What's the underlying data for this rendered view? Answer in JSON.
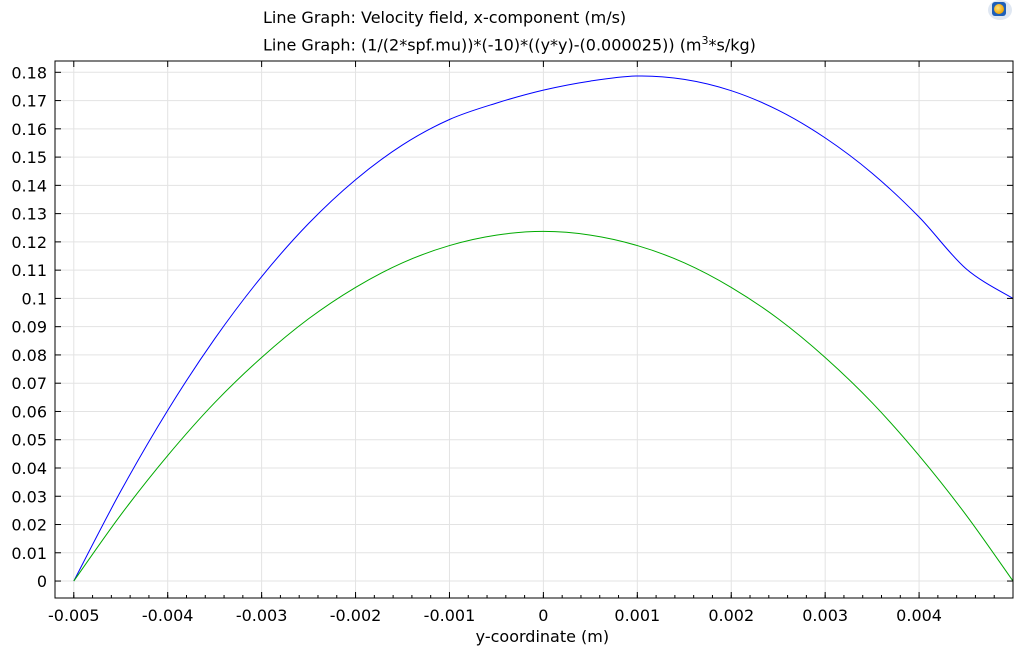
{
  "titles": {
    "line1": "Line Graph: Velocity field, x-component (m/s)",
    "line2_main": "Line Graph: (1/(2*spf.mu))*(-10)*((y*y)-(0.000025)) (m",
    "line2_sup": "3",
    "line2_tail": "*s/kg)"
  },
  "logo": {
    "icon": "comsol-logo-icon"
  },
  "chart_data": {
    "type": "line",
    "title": "",
    "xlabel": "y-coordinate (m)",
    "ylabel": "",
    "xlim": [
      -0.0052,
      0.005
    ],
    "ylim": [
      -0.006,
      0.184
    ],
    "grid": true,
    "legend": "none",
    "x_ticks": [
      -0.005,
      -0.004,
      -0.003,
      -0.002,
      -0.001,
      0,
      0.001,
      0.002,
      0.003,
      0.004
    ],
    "x_tick_labels": [
      "-0.005",
      "-0.004",
      "-0.003",
      "-0.002",
      "-0.001",
      "0",
      "0.001",
      "0.002",
      "0.003",
      "0.004"
    ],
    "y_ticks": [
      0,
      0.01,
      0.02,
      0.03,
      0.04,
      0.05,
      0.06,
      0.07,
      0.08,
      0.09,
      0.1,
      0.11,
      0.12,
      0.13,
      0.14,
      0.15,
      0.16,
      0.17,
      0.18
    ],
    "y_tick_labels": [
      "0",
      "0.01",
      "0.02",
      "0.03",
      "0.04",
      "0.05",
      "0.06",
      "0.07",
      "0.08",
      "0.09",
      "0.1",
      "0.11",
      "0.12",
      "0.13",
      "0.14",
      "0.15",
      "0.16",
      "0.17",
      "0.18"
    ],
    "series": [
      {
        "color": "#0000ff",
        "x": [
          -0.005,
          -0.0045,
          -0.004,
          -0.0035,
          -0.003,
          -0.0025,
          -0.002,
          -0.0015,
          -0.001,
          -0.0005,
          0,
          0.0005,
          0.001,
          0.0015,
          0.002,
          0.0025,
          0.003,
          0.0035,
          0.004,
          0.0045,
          0.005
        ],
        "y": [
          0,
          0.0318,
          0.0604,
          0.0857,
          0.1077,
          0.1265,
          0.142,
          0.1543,
          0.1633,
          0.1691,
          0.1737,
          0.1769,
          0.1787,
          0.1775,
          0.1735,
          0.1666,
          0.1568,
          0.1443,
          0.1288,
          0.1105,
          0.1
        ]
      },
      {
        "color": "#00aa00",
        "x": [
          -0.005,
          -0.0045,
          -0.004,
          -0.0035,
          -0.003,
          -0.0025,
          -0.002,
          -0.0015,
          -0.001,
          -0.0005,
          0,
          0.0005,
          0.001,
          0.0015,
          0.002,
          0.0025,
          0.003,
          0.0035,
          0.004,
          0.0045,
          0.005
        ],
        "y": [
          0,
          0.0234,
          0.0444,
          0.0631,
          0.0791,
          0.0928,
          0.1039,
          0.1126,
          0.1187,
          0.1224,
          0.1237,
          0.1224,
          0.1187,
          0.1126,
          0.1039,
          0.0928,
          0.0791,
          0.0631,
          0.0444,
          0.0234,
          0
        ]
      }
    ]
  }
}
